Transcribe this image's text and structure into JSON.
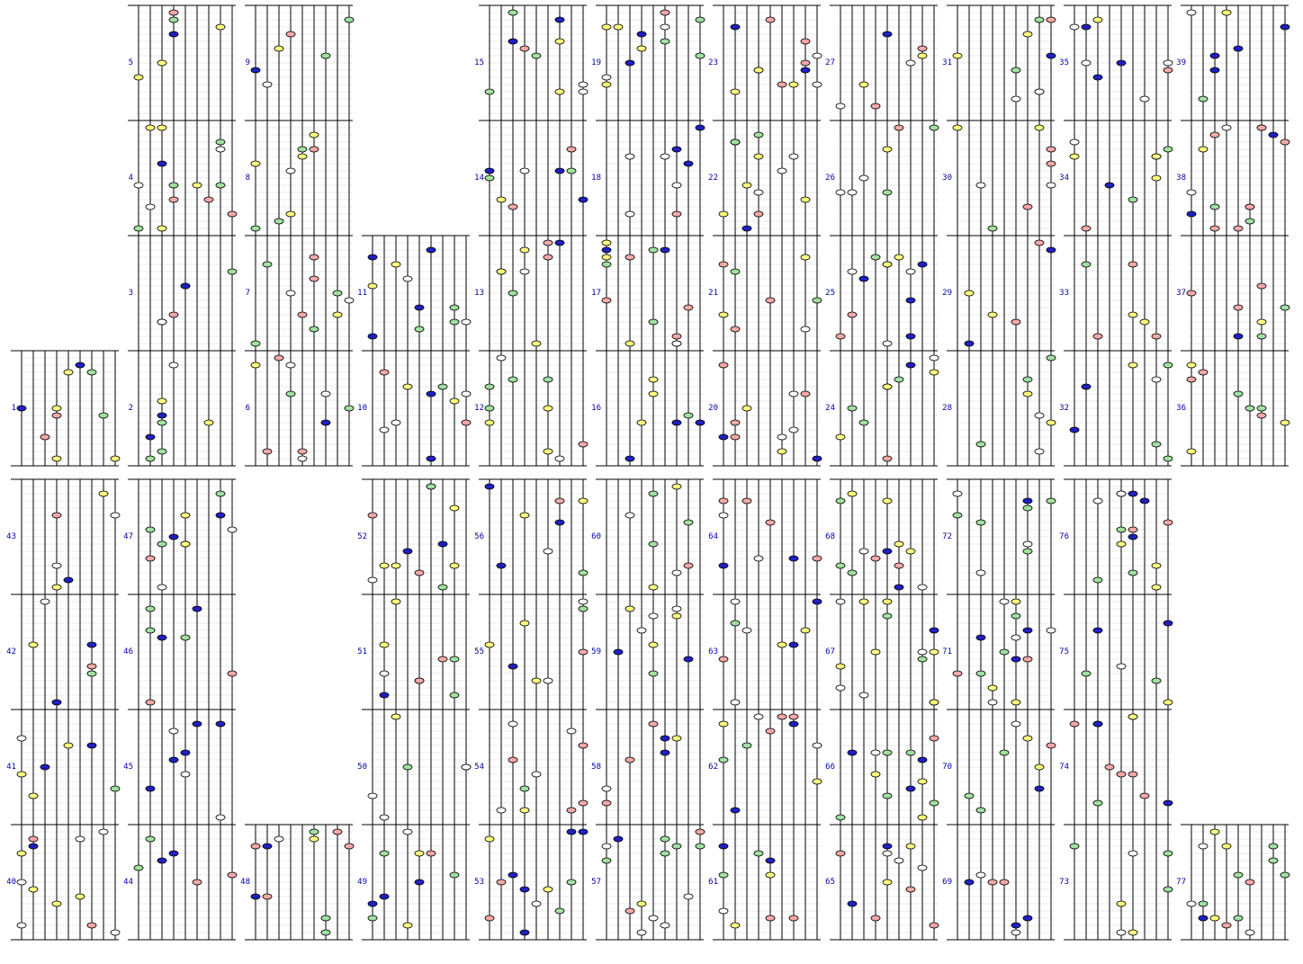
{
  "window": {
    "background": "#ffffff"
  },
  "score": {
    "label_color": "#0000aa",
    "string_color": "#000000",
    "gridline_color": "#b0b0b0",
    "bead_colors": {
      "yellow": "#ffff80",
      "blue": "#2020c0",
      "green": "#a0e0a0",
      "pink": "#f4a8a8",
      "white": "#ffffff"
    },
    "icon": "abacus-bead-icon",
    "measures": [
      {
        "n": "1"
      },
      {
        "n": "2"
      },
      {
        "n": "3"
      },
      {
        "n": "4"
      },
      {
        "n": "5"
      },
      {
        "n": "6"
      },
      {
        "n": "7"
      },
      {
        "n": "8"
      },
      {
        "n": "9"
      },
      {
        "n": "10"
      },
      {
        "n": "11"
      },
      {
        "n": "12"
      },
      {
        "n": "13"
      },
      {
        "n": "14"
      },
      {
        "n": "15"
      },
      {
        "n": "16"
      },
      {
        "n": "17"
      },
      {
        "n": "18"
      },
      {
        "n": "19"
      },
      {
        "n": "20"
      },
      {
        "n": "21"
      },
      {
        "n": "22"
      },
      {
        "n": "23"
      },
      {
        "n": "24"
      },
      {
        "n": "25"
      },
      {
        "n": "26"
      },
      {
        "n": "27"
      },
      {
        "n": "28"
      },
      {
        "n": "29"
      },
      {
        "n": "30"
      },
      {
        "n": "31"
      },
      {
        "n": "32"
      },
      {
        "n": "33"
      },
      {
        "n": "34"
      },
      {
        "n": "35"
      },
      {
        "n": "36"
      },
      {
        "n": "37"
      },
      {
        "n": "38"
      },
      {
        "n": "39"
      },
      {
        "n": "40"
      },
      {
        "n": "41"
      },
      {
        "n": "42"
      },
      {
        "n": "43"
      },
      {
        "n": "44"
      },
      {
        "n": "45"
      },
      {
        "n": "46"
      },
      {
        "n": "47"
      },
      {
        "n": "48"
      },
      {
        "n": "49"
      },
      {
        "n": "50"
      },
      {
        "n": "51"
      },
      {
        "n": "52"
      },
      {
        "n": "53"
      },
      {
        "n": "54"
      },
      {
        "n": "55"
      },
      {
        "n": "56"
      },
      {
        "n": "57"
      },
      {
        "n": "58"
      },
      {
        "n": "59"
      },
      {
        "n": "60"
      },
      {
        "n": "61"
      },
      {
        "n": "62"
      },
      {
        "n": "63"
      },
      {
        "n": "64"
      },
      {
        "n": "65"
      },
      {
        "n": "66"
      },
      {
        "n": "67"
      },
      {
        "n": "68"
      },
      {
        "n": "69"
      },
      {
        "n": "70"
      },
      {
        "n": "71"
      },
      {
        "n": "72"
      },
      {
        "n": "73"
      },
      {
        "n": "74"
      },
      {
        "n": "75"
      },
      {
        "n": "76"
      },
      {
        "n": "77"
      }
    ]
  }
}
